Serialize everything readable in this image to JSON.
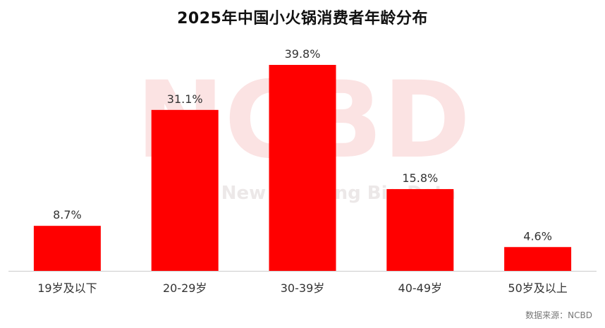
{
  "title": "2025年中国小火锅消费者年龄分布",
  "source": "数据来源：NCBD",
  "watermark": {
    "logo": "NCBD",
    "text": "New Catering Big Data"
  },
  "colors": {
    "bar": "#ff0000",
    "axis": "#cccccc",
    "label": "#333333",
    "watermark": "#fbe3e3"
  },
  "chart_data": {
    "type": "bar",
    "categories": [
      "19岁及以下",
      "20-29岁",
      "30-39岁",
      "40-49岁",
      "50岁及以上"
    ],
    "values": [
      8.7,
      31.1,
      39.8,
      15.8,
      4.6
    ],
    "value_labels": [
      "8.7%",
      "31.1%",
      "39.8%",
      "15.8%",
      "4.6%"
    ],
    "unit": "%",
    "ylim": [
      0,
      45
    ],
    "grid": false,
    "legend": "none"
  }
}
